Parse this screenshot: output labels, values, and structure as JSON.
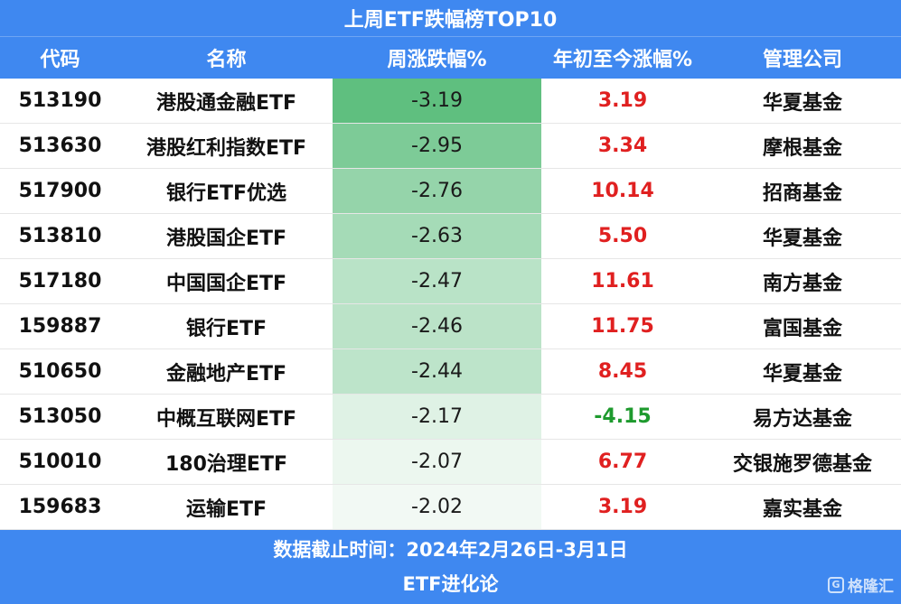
{
  "title": "上周ETF跌幅榜TOP10",
  "columns": [
    "代码",
    "名称",
    "周涨跌幅%",
    "年初至今涨幅%",
    "管理公司"
  ],
  "chart_data": {
    "type": "table",
    "title": "上周ETF跌幅榜TOP10",
    "columns": [
      "代码",
      "名称",
      "周涨跌幅%",
      "年初至今涨幅%",
      "管理公司"
    ],
    "rows": [
      {
        "code": "513190",
        "name": "港股通金融ETF",
        "weekly": -3.19,
        "ytd": 3.19,
        "manager": "华夏基金"
      },
      {
        "code": "513630",
        "name": "港股红利指数ETF",
        "weekly": -2.95,
        "ytd": 3.34,
        "manager": "摩根基金"
      },
      {
        "code": "517900",
        "name": "银行ETF优选",
        "weekly": -2.76,
        "ytd": 10.14,
        "manager": "招商基金"
      },
      {
        "code": "513810",
        "name": "港股国企ETF",
        "weekly": -2.63,
        "ytd": 5.5,
        "manager": "华夏基金"
      },
      {
        "code": "517180",
        "name": "中国国企ETF",
        "weekly": -2.47,
        "ytd": 11.61,
        "manager": "南方基金"
      },
      {
        "code": "159887",
        "name": "银行ETF",
        "weekly": -2.46,
        "ytd": 11.75,
        "manager": "富国基金"
      },
      {
        "code": "510650",
        "name": "金融地产ETF",
        "weekly": -2.44,
        "ytd": 8.45,
        "manager": "华夏基金"
      },
      {
        "code": "513050",
        "name": "中概互联网ETF",
        "weekly": -2.17,
        "ytd": -4.15,
        "manager": "易方达基金"
      },
      {
        "code": "510010",
        "name": "180治理ETF",
        "weekly": -2.07,
        "ytd": 6.77,
        "manager": "交银施罗德基金"
      },
      {
        "code": "159683",
        "name": "运输ETF",
        "weekly": -2.02,
        "ytd": 3.19,
        "manager": "嘉实基金"
      }
    ]
  },
  "footer": {
    "date_note": "数据截止时间：2024年2月26日-3月1日",
    "source": "ETF进化论"
  },
  "logo": {
    "text": "格隆汇",
    "mark": "G"
  },
  "colors": {
    "header_bg": "#3f88f0",
    "positive": "#e02020",
    "negative": "#1e9a2e",
    "heat_strong": "#5fbf7f",
    "heat_weak": "#f2f9f4"
  }
}
